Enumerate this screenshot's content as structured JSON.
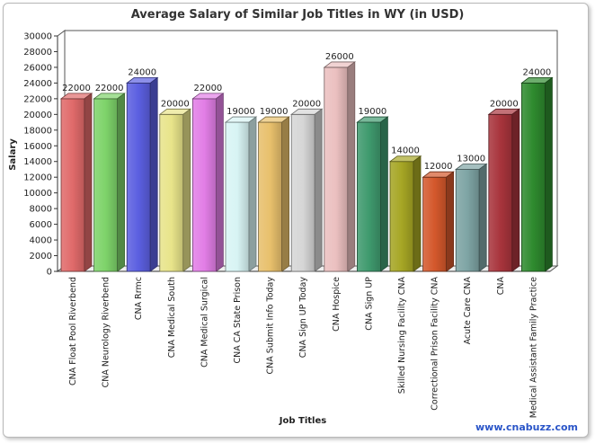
{
  "chart_data": {
    "type": "bar",
    "title": "Average Salary of Similar Job Titles in WY (in USD)",
    "xlabel": "Job Titles",
    "ylabel": "Salary",
    "ylim": [
      0,
      30000
    ],
    "yticks": [
      0,
      2000,
      4000,
      6000,
      8000,
      10000,
      12000,
      14000,
      16000,
      18000,
      20000,
      22000,
      24000,
      26000,
      28000,
      30000
    ],
    "grid": false,
    "categories": [
      "CNA Float Pool Riverbend",
      "CNA Neurology Riverbend",
      "CNA Rrmc",
      "CNA Medical South",
      "CNA Medical Surgical",
      "CNA CA State Prison",
      "CNA Submit Info Today",
      "CNA Sign UP Today",
      "CNA Hospice",
      "CNA Sign UP",
      "Skilled Nursing Facility CNA",
      "Correctional Prison Facility CNA",
      "Acute Care CNA",
      "CNA",
      "Medical Assistant Family Practice"
    ],
    "values": [
      22000,
      22000,
      24000,
      20000,
      22000,
      19000,
      19000,
      20000,
      26000,
      19000,
      14000,
      12000,
      13000,
      20000,
      24000
    ],
    "value_labels": [
      "22000",
      "22000",
      "24000",
      "20000",
      "22000",
      "19000",
      "19000",
      "20000",
      "26000",
      "19000",
      "14000",
      "12000",
      "13000",
      "20000",
      "24000"
    ],
    "colors": [
      "#e06a6a",
      "#7ed36a",
      "#5b5fe0",
      "#e8e48a",
      "#e27ee6",
      "#d8f4f4",
      "#e8c06c",
      "#d6d6d6",
      "#ebc0c0",
      "#3f9a6e",
      "#a6a624",
      "#d4582c",
      "#7ea4a4",
      "#a8343c",
      "#2e8a2e"
    ]
  },
  "watermark": "www.cnabuzz.com"
}
